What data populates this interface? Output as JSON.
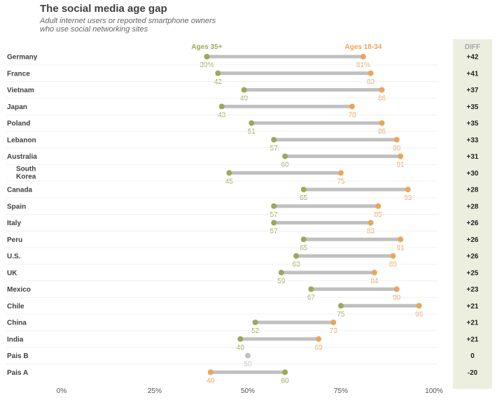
{
  "title": "The social media age gap",
  "subtitle": "Adult internet users or reported smartphone owners who use social networking sites",
  "diff_header": "DIFF",
  "colors": {
    "older": "#9aa95a",
    "younger": "#eaa55c",
    "bar": "#c0c0c0",
    "diff_panel": "#ecefe0",
    "equal": "#c0c0c0"
  },
  "chart_data": {
    "type": "dumbbell",
    "title": "The social media age gap",
    "subtitle": "Adult internet users or reported smartphone owners who use social networking sites",
    "xlim": [
      0,
      100
    ],
    "x_ticks": [
      "0%",
      "25%",
      "50%",
      "75%",
      "100%"
    ],
    "legend": {
      "older": "Ages 35+",
      "younger": "Ages 18-34"
    },
    "series": [
      {
        "name": "Ages 35+",
        "values": [
          39,
          42,
          49,
          43,
          51,
          57,
          60,
          45,
          65,
          57,
          57,
          65,
          63,
          59,
          67,
          75,
          52,
          48,
          50,
          60
        ]
      },
      {
        "name": "Ages 18-34",
        "values": [
          81,
          83,
          86,
          78,
          86,
          90,
          91,
          75,
          93,
          85,
          83,
          91,
          89,
          84,
          90,
          96,
          73,
          69,
          50,
          40
        ]
      }
    ],
    "categories": [
      "Germany",
      "France",
      "Vietnam",
      "Japan",
      "Poland",
      "Lebanon",
      "Australia",
      "South Korea",
      "Canada",
      "Spain",
      "Italy",
      "Peru",
      "U.S.",
      "UK",
      "Mexico",
      "Chile",
      "China",
      "India",
      "Pais B",
      "Pais A"
    ],
    "rows": [
      {
        "country": "Germany",
        "older": 39,
        "younger": 81,
        "older_label": "39%",
        "younger_label": "81%",
        "diff": "+42"
      },
      {
        "country": "France",
        "older": 42,
        "younger": 83,
        "older_label": "42",
        "younger_label": "83",
        "diff": "+41"
      },
      {
        "country": "Vietnam",
        "older": 49,
        "younger": 86,
        "older_label": "49",
        "younger_label": "86",
        "diff": "+37"
      },
      {
        "country": "Japan",
        "older": 43,
        "younger": 78,
        "older_label": "43",
        "younger_label": "78",
        "diff": "+35"
      },
      {
        "country": "Poland",
        "older": 51,
        "younger": 86,
        "older_label": "51",
        "younger_label": "86",
        "diff": "+35"
      },
      {
        "country": "Lebanon",
        "older": 57,
        "younger": 90,
        "older_label": "57",
        "younger_label": "90",
        "diff": "+33"
      },
      {
        "country": "Australia",
        "older": 60,
        "younger": 91,
        "older_label": "60",
        "younger_label": "91",
        "diff": "+31"
      },
      {
        "country": "South Korea",
        "older": 45,
        "younger": 75,
        "older_label": "45",
        "younger_label": "75",
        "diff": "+30"
      },
      {
        "country": "Canada",
        "older": 65,
        "younger": 93,
        "older_label": "65",
        "younger_label": "93",
        "diff": "+28"
      },
      {
        "country": "Spain",
        "older": 57,
        "younger": 85,
        "older_label": "57",
        "younger_label": "85",
        "diff": "+28"
      },
      {
        "country": "Italy",
        "older": 57,
        "younger": 83,
        "older_label": "57",
        "younger_label": "83",
        "diff": "+26"
      },
      {
        "country": "Peru",
        "older": 65,
        "younger": 91,
        "older_label": "65",
        "younger_label": "91",
        "diff": "+26"
      },
      {
        "country": "U.S.",
        "older": 63,
        "younger": 89,
        "older_label": "63",
        "younger_label": "89",
        "diff": "+26"
      },
      {
        "country": "UK",
        "older": 59,
        "younger": 84,
        "older_label": "59",
        "younger_label": "84",
        "diff": "+25"
      },
      {
        "country": "Mexico",
        "older": 67,
        "younger": 90,
        "older_label": "67",
        "younger_label": "90",
        "diff": "+23"
      },
      {
        "country": "Chile",
        "older": 75,
        "younger": 96,
        "older_label": "75",
        "younger_label": "96",
        "diff": "+21"
      },
      {
        "country": "China",
        "older": 52,
        "younger": 73,
        "older_label": "52",
        "younger_label": "73",
        "diff": "+21"
      },
      {
        "country": "India",
        "older": 48,
        "younger": 69,
        "older_label": "48",
        "younger_label": "69",
        "diff": "+21"
      },
      {
        "country": "Pais B",
        "older": 50,
        "younger": 50,
        "older_label": "50",
        "younger_label": "",
        "diff": "0"
      },
      {
        "country": "Pais A",
        "older": 60,
        "younger": 40,
        "older_label": "60",
        "younger_label": "40",
        "diff": "-20"
      }
    ]
  }
}
